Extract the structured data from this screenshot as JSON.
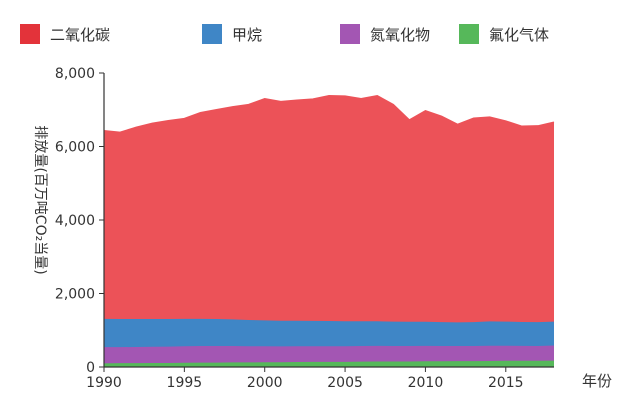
{
  "chart_data": {
    "type": "area",
    "stacked": true,
    "x": [
      1990,
      1991,
      1992,
      1993,
      1994,
      1995,
      1996,
      1997,
      1998,
      1999,
      2000,
      2001,
      2002,
      2003,
      2004,
      2005,
      2006,
      2007,
      2008,
      2009,
      2010,
      2011,
      2012,
      2013,
      2014,
      2015,
      2016,
      2017,
      2018
    ],
    "series": [
      {
        "name": "氟化气体",
        "color": "#56b85a",
        "values": [
          100,
          105,
          105,
          110,
          110,
          115,
          120,
          120,
          125,
          125,
          130,
          130,
          135,
          140,
          140,
          140,
          145,
          150,
          150,
          150,
          155,
          155,
          160,
          160,
          165,
          170,
          170,
          170,
          175
        ]
      },
      {
        "name": "氮氧化物",
        "color": "#a356b3",
        "values": [
          440,
          435,
          440,
          440,
          445,
          450,
          450,
          450,
          445,
          440,
          435,
          430,
          430,
          425,
          425,
          425,
          425,
          425,
          420,
          420,
          420,
          415,
          410,
          410,
          415,
          410,
          405,
          400,
          410
        ]
      },
      {
        "name": "甲烷",
        "color": "#3f86c6",
        "values": [
          770,
          765,
          760,
          755,
          750,
          745,
          740,
          735,
          725,
          715,
          705,
          700,
          695,
          690,
          685,
          680,
          675,
          670,
          665,
          660,
          655,
          650,
          645,
          650,
          660,
          655,
          650,
          650,
          650
        ]
      },
      {
        "name": "二氧化碳",
        "color": "#ec5258",
        "values": [
          5120,
          5080,
          5215,
          5325,
          5395,
          5450,
          5610,
          5695,
          5785,
          5860,
          6030,
          5960,
          6000,
          6035,
          6130,
          6125,
          6055,
          6135,
          5905,
          5490,
          5740,
          5600,
          5385,
          5550,
          5560,
          5455,
          5325,
          5340,
          5425
        ]
      }
    ],
    "legend": [
      {
        "name": "二氧化碳",
        "color": "#e3333a"
      },
      {
        "name": "甲烷",
        "color": "#3f86c6"
      },
      {
        "name": "氮氧化物",
        "color": "#a356b3"
      },
      {
        "name": "氟化气体",
        "color": "#56b85a"
      }
    ],
    "legend_position": "top",
    "xlabel": "年份",
    "ylabel": "排放量(百万吨CO₂当量)",
    "xlim": [
      1990,
      2018
    ],
    "ylim": [
      0,
      8000
    ],
    "y_ticks": [
      0,
      2000,
      4000,
      6000,
      8000
    ],
    "y_tick_labels": [
      "0",
      "2,000",
      "4,000",
      "6,000",
      "8,000"
    ],
    "x_ticks": [
      1990,
      1995,
      2000,
      2005,
      2010,
      2015
    ],
    "x_tick_labels": [
      "1990",
      "1995",
      "2000",
      "2005",
      "2010",
      "2015"
    ],
    "grid": false
  }
}
